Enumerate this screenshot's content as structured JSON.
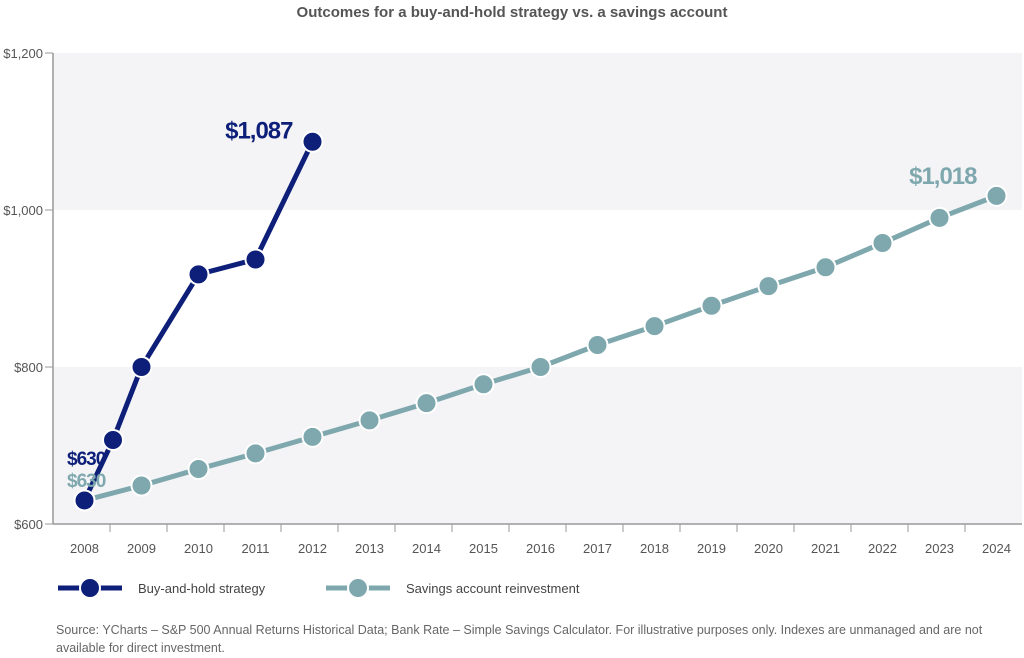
{
  "chart_data": {
    "type": "line",
    "title": "Outcomes for a buy-and-hold strategy vs. a savings account",
    "xlabel": "",
    "ylabel": "",
    "categories": [
      "2008",
      "2009",
      "2010",
      "2011",
      "2012",
      "2013",
      "2014",
      "2015",
      "2016",
      "2017",
      "2018",
      "2019",
      "2020",
      "2021",
      "2022",
      "2023",
      "2024"
    ],
    "ylim": [
      600,
      1200
    ],
    "yticks": [
      600,
      800,
      1000,
      1200
    ],
    "ytick_labels": [
      "$600",
      "$800",
      "$1,000",
      "$1,200"
    ],
    "grid": "alternating horizontal bands",
    "series": [
      {
        "name": "Buy-and-hold strategy",
        "color": "#0d1f78",
        "x": [
          2008,
          2008.5,
          2009,
          2010,
          2011,
          2012
        ],
        "values": [
          630,
          707,
          800,
          918,
          937,
          1087
        ],
        "labels": [
          {
            "text": "$630",
            "x": 2008,
            "value": 630
          },
          {
            "text": "$1,087",
            "x": 2012,
            "value": 1087
          }
        ]
      },
      {
        "name": "Savings account reinvestment",
        "color": "#7ea8ad",
        "x": [
          2008,
          2009,
          2010,
          2011,
          2012,
          2013,
          2014,
          2015,
          2016,
          2017,
          2018,
          2019,
          2020,
          2021,
          2022,
          2023,
          2024
        ],
        "values": [
          630,
          649,
          670,
          690,
          711,
          732,
          754,
          778,
          800,
          828,
          852,
          878,
          903,
          927,
          958,
          990,
          1018
        ],
        "labels": [
          {
            "text": "$630",
            "x": 2008,
            "value": 630
          },
          {
            "text": "$1,018",
            "x": 2024,
            "value": 1018
          }
        ]
      }
    ],
    "legend": "bottom-left"
  },
  "source": "Source: YCharts – S&P 500 Annual Returns Historical Data; Bank Rate – Simple Savings Calculator. For illustrative purposes only. Indexes are unmanaged and are not available for direct investment."
}
